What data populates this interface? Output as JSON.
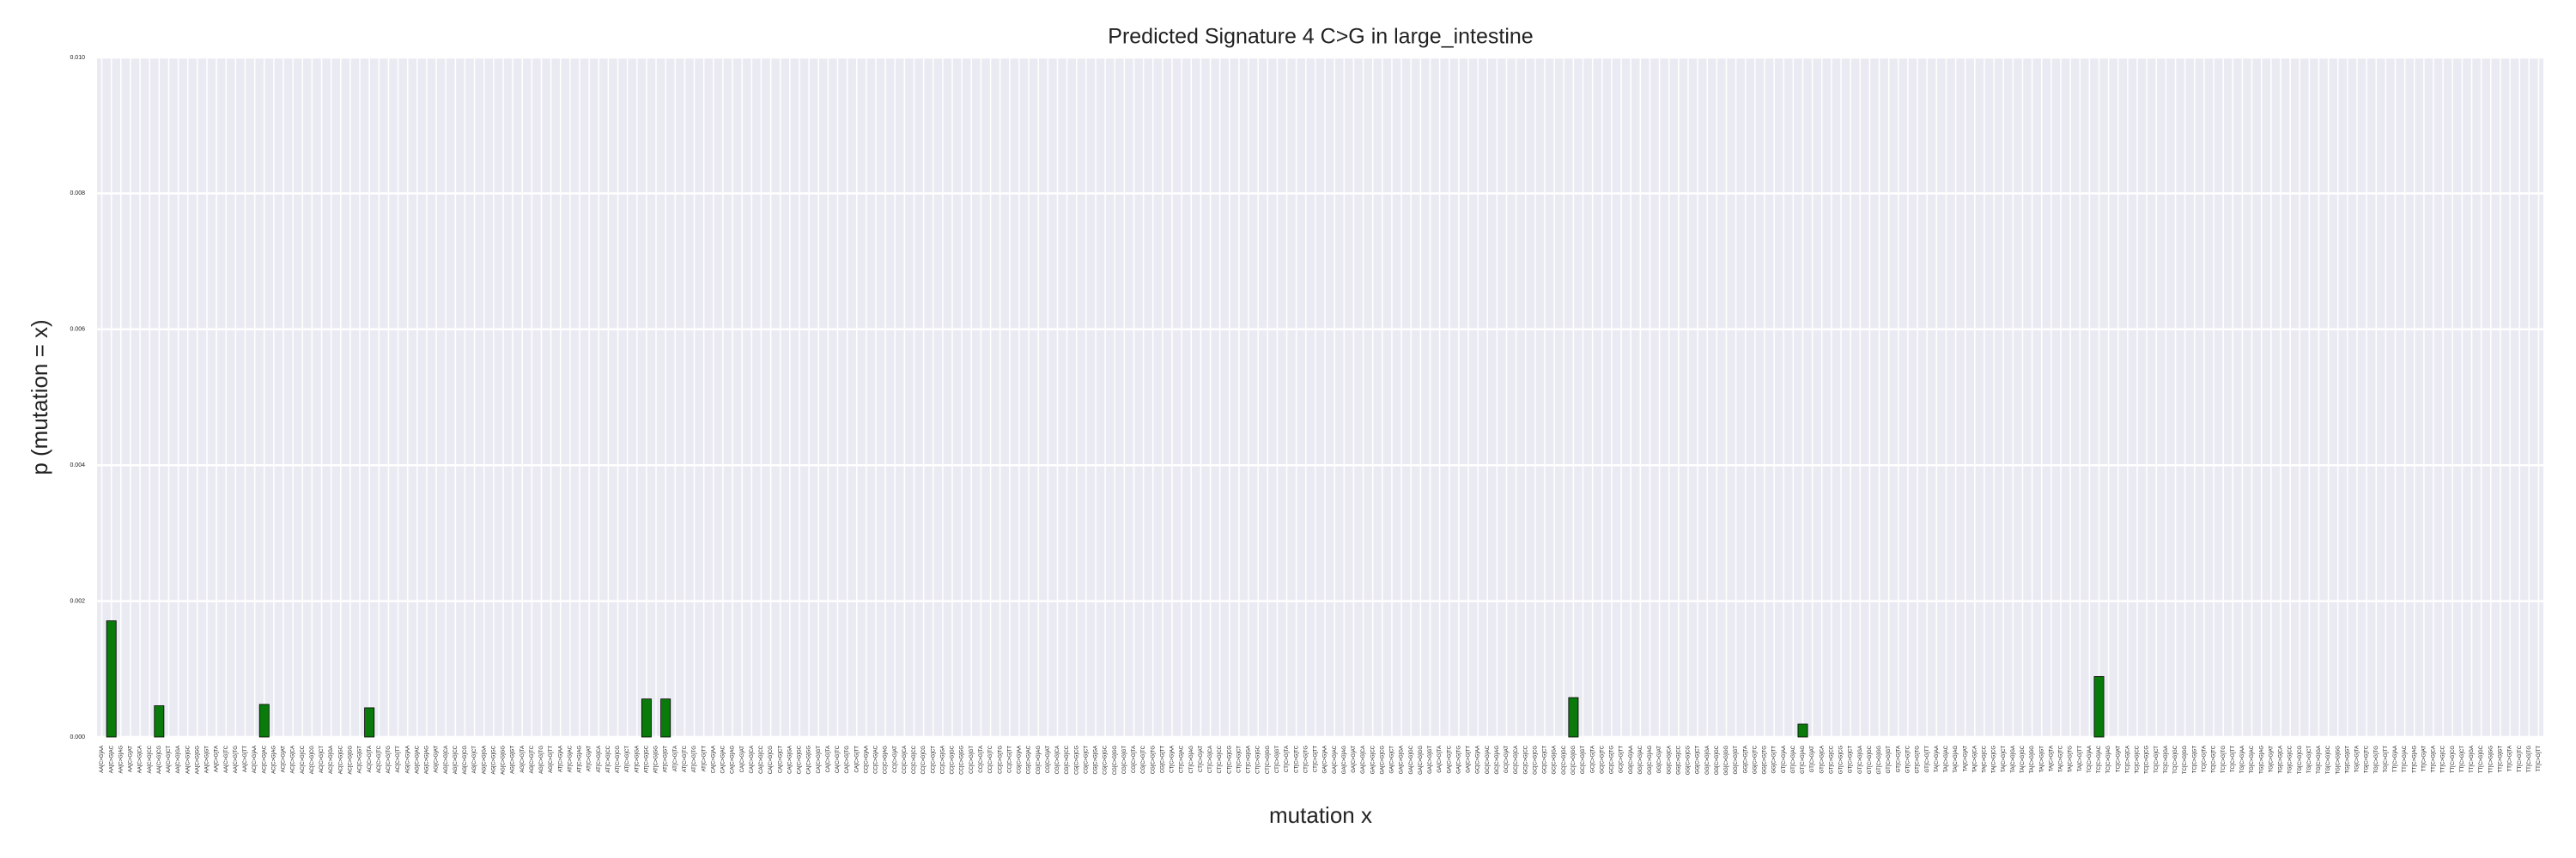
{
  "chart_data": {
    "type": "bar",
    "title": "Predicted Signature 4 C>G in large_intestine",
    "xlabel": "mutation x",
    "ylabel": "p (mutation = x)",
    "color": "#0a7a0a",
    "grid": true,
    "ylim": [
      0,
      0.01
    ],
    "yticks": [
      {
        "value": 0,
        "label": "0.000"
      },
      {
        "value": 0.002,
        "label": "0.002"
      },
      {
        "value": 0.004,
        "label": "0.004"
      },
      {
        "value": 0.006,
        "label": "0.006"
      },
      {
        "value": 0.008,
        "label": "0.008"
      },
      {
        "value": 0.01,
        "label": "0.010"
      }
    ],
    "categories": [
      "AA[C>G]AA",
      "AA[C>G]AC",
      "AA[C>G]AG",
      "AA[C>G]AT",
      "AA[C>G]CA",
      "AA[C>G]CC",
      "AA[C>G]CG",
      "AA[C>G]CT",
      "AA[C>G]GA",
      "AA[C>G]GC",
      "AA[C>G]GG",
      "AA[C>G]GT",
      "AA[C>G]TA",
      "AA[C>G]TC",
      "AA[C>G]TG",
      "AA[C>G]TT",
      "AC[C>G]AA",
      "AC[C>G]AC",
      "AC[C>G]AG",
      "AC[C>G]AT",
      "AC[C>G]CA",
      "AC[C>G]CC",
      "AC[C>G]CG",
      "AC[C>G]CT",
      "AC[C>G]GA",
      "AC[C>G]GC",
      "AC[C>G]GG",
      "AC[C>G]GT",
      "AC[C>G]TA",
      "AC[C>G]TC",
      "AC[C>G]TG",
      "AC[C>G]TT",
      "AG[C>G]AA",
      "AG[C>G]AC",
      "AG[C>G]AG",
      "AG[C>G]AT",
      "AG[C>G]CA",
      "AG[C>G]CC",
      "AG[C>G]CG",
      "AG[C>G]CT",
      "AG[C>G]GA",
      "AG[C>G]GC",
      "AG[C>G]GG",
      "AG[C>G]GT",
      "AG[C>G]TA",
      "AG[C>G]TC",
      "AG[C>G]TG",
      "AG[C>G]TT",
      "AT[C>G]AA",
      "AT[C>G]AC",
      "AT[C>G]AG",
      "AT[C>G]AT",
      "AT[C>G]CA",
      "AT[C>G]CC",
      "AT[C>G]CG",
      "AT[C>G]CT",
      "AT[C>G]GA",
      "AT[C>G]GC",
      "AT[C>G]GG",
      "AT[C>G]GT",
      "AT[C>G]TA",
      "AT[C>G]TC",
      "AT[C>G]TG",
      "AT[C>G]TT",
      "CA[C>G]AA",
      "CA[C>G]AC",
      "CA[C>G]AG",
      "CA[C>G]AT",
      "CA[C>G]CA",
      "CA[C>G]CC",
      "CA[C>G]CG",
      "CA[C>G]CT",
      "CA[C>G]GA",
      "CA[C>G]GC",
      "CA[C>G]GG",
      "CA[C>G]GT",
      "CA[C>G]TA",
      "CA[C>G]TC",
      "CA[C>G]TG",
      "CA[C>G]TT",
      "CC[C>G]AA",
      "CC[C>G]AC",
      "CC[C>G]AG",
      "CC[C>G]AT",
      "CC[C>G]CA",
      "CC[C>G]CC",
      "CC[C>G]CG",
      "CC[C>G]CT",
      "CC[C>G]GA",
      "CC[C>G]GC",
      "CC[C>G]GG",
      "CC[C>G]GT",
      "CC[C>G]TA",
      "CC[C>G]TC",
      "CC[C>G]TG",
      "CC[C>G]TT",
      "CG[C>G]AA",
      "CG[C>G]AC",
      "CG[C>G]AG",
      "CG[C>G]AT",
      "CG[C>G]CA",
      "CG[C>G]CC",
      "CG[C>G]CG",
      "CG[C>G]CT",
      "CG[C>G]GA",
      "CG[C>G]GC",
      "CG[C>G]GG",
      "CG[C>G]GT",
      "CG[C>G]TA",
      "CG[C>G]TC",
      "CG[C>G]TG",
      "CG[C>G]TT",
      "CT[C>G]AA",
      "CT[C>G]AC",
      "CT[C>G]AG",
      "CT[C>G]AT",
      "CT[C>G]CA",
      "CT[C>G]CC",
      "CT[C>G]CG",
      "CT[C>G]CT",
      "CT[C>G]GA",
      "CT[C>G]GC",
      "CT[C>G]GG",
      "CT[C>G]GT",
      "CT[C>G]TA",
      "CT[C>G]TC",
      "CT[C>G]TG",
      "CT[C>G]TT",
      "GA[C>G]AA",
      "GA[C>G]AC",
      "GA[C>G]AG",
      "GA[C>G]AT",
      "GA[C>G]CA",
      "GA[C>G]CC",
      "GA[C>G]CG",
      "GA[C>G]CT",
      "GA[C>G]GA",
      "GA[C>G]GC",
      "GA[C>G]GG",
      "GA[C>G]GT",
      "GA[C>G]TA",
      "GA[C>G]TC",
      "GA[C>G]TG",
      "GA[C>G]TT",
      "GC[C>G]AA",
      "GC[C>G]AC",
      "GC[C>G]AG",
      "GC[C>G]AT",
      "GC[C>G]CA",
      "GC[C>G]CC",
      "GC[C>G]CG",
      "GC[C>G]CT",
      "GC[C>G]GA",
      "GC[C>G]GC",
      "GC[C>G]GG",
      "GC[C>G]GT",
      "GC[C>G]TA",
      "GC[C>G]TC",
      "GC[C>G]TG",
      "GC[C>G]TT",
      "GG[C>G]AA",
      "GG[C>G]AC",
      "GG[C>G]AG",
      "GG[C>G]AT",
      "GG[C>G]CA",
      "GG[C>G]CC",
      "GG[C>G]CG",
      "GG[C>G]CT",
      "GG[C>G]GA",
      "GG[C>G]GC",
      "GG[C>G]GG",
      "GG[C>G]GT",
      "GG[C>G]TA",
      "GG[C>G]TC",
      "GG[C>G]TG",
      "GG[C>G]TT",
      "GT[C>G]AA",
      "GT[C>G]AC",
      "GT[C>G]AG",
      "GT[C>G]AT",
      "GT[C>G]CA",
      "GT[C>G]CC",
      "GT[C>G]CG",
      "GT[C>G]CT",
      "GT[C>G]GA",
      "GT[C>G]GC",
      "GT[C>G]GG",
      "GT[C>G]GT",
      "GT[C>G]TA",
      "GT[C>G]TC",
      "GT[C>G]TG",
      "GT[C>G]TT",
      "TA[C>G]AA",
      "TA[C>G]AC",
      "TA[C>G]AG",
      "TA[C>G]AT",
      "TA[C>G]CA",
      "TA[C>G]CC",
      "TA[C>G]CG",
      "TA[C>G]CT",
      "TA[C>G]GA",
      "TA[C>G]GC",
      "TA[C>G]GG",
      "TA[C>G]GT",
      "TA[C>G]TA",
      "TA[C>G]TC",
      "TA[C>G]TG",
      "TA[C>G]TT",
      "TC[C>G]AA",
      "TC[C>G]AC",
      "TC[C>G]AG",
      "TC[C>G]AT",
      "TC[C>G]CA",
      "TC[C>G]CC",
      "TC[C>G]CG",
      "TC[C>G]CT",
      "TC[C>G]GA",
      "TC[C>G]GC",
      "TC[C>G]GG",
      "TC[C>G]GT",
      "TC[C>G]TA",
      "TC[C>G]TC",
      "TC[C>G]TG",
      "TC[C>G]TT",
      "TG[C>G]AA",
      "TG[C>G]AC",
      "TG[C>G]AG",
      "TG[C>G]AT",
      "TG[C>G]CA",
      "TG[C>G]CC",
      "TG[C>G]CG",
      "TG[C>G]CT",
      "TG[C>G]GA",
      "TG[C>G]GC",
      "TG[C>G]GG",
      "TG[C>G]GT",
      "TG[C>G]TA",
      "TG[C>G]TC",
      "TG[C>G]TG",
      "TG[C>G]TT",
      "TT[C>G]AA",
      "TT[C>G]AC",
      "TT[C>G]AG",
      "TT[C>G]AT",
      "TT[C>G]CA",
      "TT[C>G]CC",
      "TT[C>G]CG",
      "TT[C>G]CT",
      "TT[C>G]GA",
      "TT[C>G]GC",
      "TT[C>G]GG",
      "TT[C>G]GT",
      "TT[C>G]TA",
      "TT[C>G]TC",
      "TT[C>G]TG",
      "TT[C>G]TT"
    ],
    "values": [
      0,
      0.00171,
      0,
      0,
      0,
      0,
      0.00046,
      0,
      0,
      0,
      0,
      0,
      0,
      0,
      0,
      0,
      0,
      0.00048,
      0,
      0,
      0,
      0,
      0,
      0,
      0,
      0,
      0,
      0,
      0.00043,
      0,
      0,
      0,
      0,
      0,
      0,
      0,
      0,
      0,
      0,
      0,
      0,
      0,
      0,
      0,
      0,
      0,
      0,
      0,
      0,
      0,
      0,
      0,
      0,
      0,
      0,
      0,
      0,
      0.00056,
      0,
      0.00056,
      0,
      0,
      0,
      0,
      0,
      0,
      0,
      0,
      0,
      0,
      0,
      0,
      0,
      0,
      0,
      0,
      0,
      0,
      0,
      0,
      0,
      0,
      0,
      0,
      0,
      0,
      0,
      0,
      0,
      0,
      0,
      0,
      0,
      0,
      0,
      0,
      0,
      0,
      0,
      0,
      0,
      0,
      0,
      0,
      0,
      0,
      0,
      0,
      0,
      0,
      0,
      0,
      0,
      0,
      0,
      0,
      0,
      0,
      0,
      0,
      0,
      0,
      0,
      0,
      0,
      0,
      0,
      0,
      0,
      0,
      0,
      0,
      0,
      0,
      0,
      0,
      0,
      0,
      0,
      0,
      0,
      0,
      0,
      0,
      0,
      0,
      0,
      0,
      0,
      0,
      0,
      0,
      0,
      0,
      0.00058,
      0,
      0,
      0,
      0,
      0,
      0,
      0,
      0,
      0,
      0,
      0,
      0,
      0,
      0,
      0,
      0,
      0,
      0,
      0,
      0,
      0,
      0,
      0,
      0.00019,
      0,
      0,
      0,
      0,
      0,
      0,
      0,
      0,
      0,
      0,
      0,
      0,
      0,
      0,
      0,
      0,
      0,
      0,
      0,
      0,
      0,
      0,
      0,
      0,
      0,
      0,
      0,
      0,
      0,
      0,
      0.00089,
      0,
      0,
      0,
      0,
      0,
      0,
      0,
      0,
      0,
      0,
      0,
      0,
      0,
      0,
      0,
      0,
      0,
      0,
      0,
      0,
      0,
      0,
      0,
      0,
      0,
      0,
      0,
      0,
      0,
      0,
      0,
      0,
      0,
      0,
      0,
      0,
      0,
      0,
      0,
      0,
      0,
      0,
      0,
      0,
      0,
      0
    ]
  }
}
